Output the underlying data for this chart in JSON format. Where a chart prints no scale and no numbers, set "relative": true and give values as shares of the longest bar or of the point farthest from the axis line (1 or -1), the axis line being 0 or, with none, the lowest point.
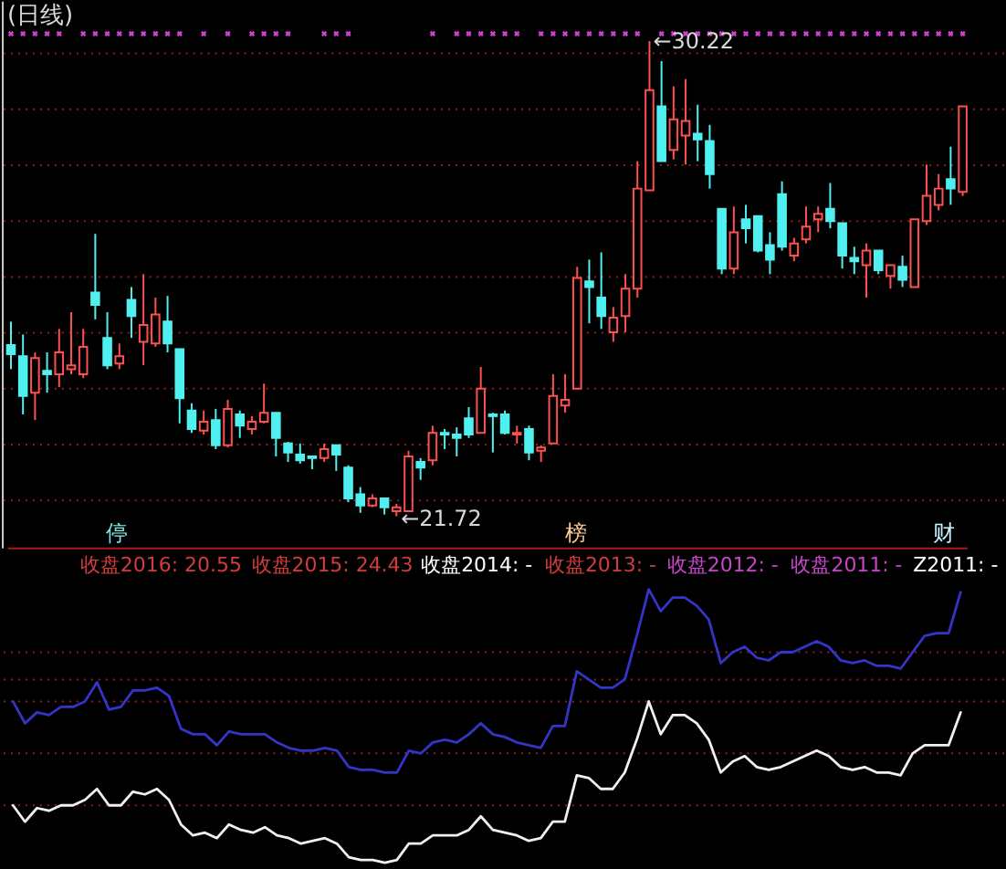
{
  "chart_data": [
    {
      "type": "candlestick",
      "title": "(日线)",
      "tick_labels": false,
      "grid": "y",
      "marker": "cross",
      "categories": [
        null,
        null,
        null,
        null,
        null,
        null,
        null,
        null,
        null,
        null,
        null,
        null,
        null,
        null,
        null,
        null,
        null,
        null,
        null,
        null,
        null,
        null,
        null,
        null,
        null,
        null,
        null,
        null,
        null,
        null,
        null,
        null,
        null,
        null,
        null,
        null,
        null,
        null,
        null,
        null,
        null,
        null,
        null,
        null,
        null,
        null,
        null,
        null,
        null,
        null,
        null,
        null,
        null,
        null,
        null,
        null,
        null,
        null,
        null,
        null,
        null,
        null,
        null,
        null,
        null,
        null,
        null,
        null,
        null,
        null,
        null,
        null,
        null,
        null,
        null,
        null,
        null,
        null,
        null,
        null
      ],
      "ylim": [
        21.16,
        30.94
      ],
      "yticks": [
        {
          "value": 22,
          "label": null
        },
        {
          "value": 23,
          "label": null
        },
        {
          "value": 24,
          "label": null
        },
        {
          "value": 25,
          "label": null
        },
        {
          "value": 26,
          "label": null
        },
        {
          "value": 27,
          "label": null
        },
        {
          "value": 28,
          "label": null
        },
        {
          "value": 29,
          "label": null
        },
        {
          "value": 30,
          "label": null
        }
      ],
      "ohlc": [
        [
          24.78,
          25.2,
          24.35,
          24.62
        ],
        [
          24.58,
          24.97,
          23.54,
          23.87
        ],
        [
          23.93,
          24.65,
          23.44,
          24.55
        ],
        [
          24.32,
          24.65,
          23.93,
          24.26
        ],
        [
          24.26,
          25.07,
          24.03,
          24.65
        ],
        [
          24.35,
          25.37,
          24.26,
          24.42
        ],
        [
          24.26,
          25.07,
          24.19,
          24.75
        ],
        [
          25.72,
          26.77,
          25.24,
          25.5
        ],
        [
          24.91,
          25.37,
          24.35,
          24.42
        ],
        [
          24.45,
          24.81,
          24.35,
          24.58
        ],
        [
          25.59,
          25.82,
          24.91,
          25.3
        ],
        [
          24.84,
          26.05,
          24.42,
          25.14
        ],
        [
          24.81,
          25.63,
          24.75,
          25.33
        ],
        [
          25.2,
          25.66,
          24.65,
          24.81
        ],
        [
          24.71,
          24.71,
          23.38,
          23.83
        ],
        [
          23.61,
          23.74,
          23.21,
          23.28
        ],
        [
          23.25,
          23.61,
          23.18,
          23.41
        ],
        [
          23.44,
          23.64,
          22.92,
          22.99
        ],
        [
          22.99,
          23.8,
          22.95,
          23.64
        ],
        [
          23.54,
          23.61,
          23.12,
          23.34
        ],
        [
          23.28,
          23.51,
          23.18,
          23.41
        ],
        [
          23.41,
          24.09,
          23.38,
          23.57
        ],
        [
          23.57,
          23.57,
          22.79,
          23.12
        ],
        [
          23.02,
          23.05,
          22.69,
          22.86
        ],
        [
          22.82,
          23.02,
          22.66,
          22.72
        ],
        [
          22.79,
          22.79,
          22.56,
          22.76
        ],
        [
          22.76,
          23.02,
          22.69,
          22.92
        ],
        [
          22.99,
          22.99,
          22.53,
          22.82
        ],
        [
          22.59,
          22.63,
          21.97,
          22.04
        ],
        [
          22.11,
          22.24,
          21.78,
          21.91
        ],
        [
          21.91,
          22.11,
          21.88,
          22.04
        ],
        [
          22.04,
          22.04,
          21.75,
          21.88
        ],
        [
          21.81,
          21.94,
          21.72,
          21.88
        ],
        [
          21.81,
          22.89,
          21.81,
          22.79
        ],
        [
          22.69,
          22.76,
          22.37,
          22.59
        ],
        [
          22.72,
          23.34,
          22.63,
          23.21
        ],
        [
          23.21,
          23.28,
          22.92,
          23.18
        ],
        [
          23.18,
          23.31,
          22.79,
          23.12
        ],
        [
          23.47,
          23.67,
          23.12,
          23.18
        ],
        [
          23.21,
          24.39,
          23.21,
          24.0
        ],
        [
          23.54,
          23.57,
          22.86,
          23.51
        ],
        [
          23.54,
          23.61,
          23.18,
          23.21
        ],
        [
          23.18,
          23.34,
          23.02,
          23.21
        ],
        [
          23.28,
          23.34,
          22.72,
          22.86
        ],
        [
          22.89,
          22.99,
          22.69,
          22.95
        ],
        [
          23.02,
          24.26,
          23.02,
          23.87
        ],
        [
          23.7,
          24.26,
          23.57,
          23.8
        ],
        [
          24.0,
          26.18,
          24.0,
          25.98
        ],
        [
          25.92,
          26.31,
          25.17,
          25.82
        ],
        [
          25.63,
          26.44,
          25.07,
          25.3
        ],
        [
          25.01,
          25.46,
          24.84,
          25.27
        ],
        [
          25.3,
          26.05,
          25.01,
          25.79
        ],
        [
          25.79,
          28.07,
          25.63,
          27.58
        ],
        [
          27.55,
          30.22,
          27.55,
          29.34
        ],
        [
          29.05,
          29.86,
          28.07,
          28.07
        ],
        [
          28.27,
          29.41,
          28.1,
          28.82
        ],
        [
          28.53,
          29.54,
          28.01,
          28.79
        ],
        [
          28.56,
          29.08,
          28.07,
          28.46
        ],
        [
          28.43,
          28.72,
          27.58,
          27.84
        ],
        [
          27.22,
          27.22,
          26.05,
          26.15
        ],
        [
          26.15,
          27.26,
          26.05,
          26.8
        ],
        [
          27.03,
          27.29,
          26.6,
          26.87
        ],
        [
          27.09,
          27.09,
          26.44,
          26.47
        ],
        [
          26.57,
          26.8,
          26.05,
          26.31
        ],
        [
          27.48,
          27.71,
          26.47,
          26.54
        ],
        [
          26.38,
          26.7,
          26.28,
          26.6
        ],
        [
          26.67,
          27.26,
          26.6,
          26.9
        ],
        [
          27.03,
          27.26,
          26.8,
          27.13
        ],
        [
          27.22,
          27.68,
          26.87,
          27.0
        ],
        [
          26.96,
          26.96,
          26.15,
          26.38
        ],
        [
          26.34,
          26.54,
          26.05,
          26.28
        ],
        [
          26.21,
          26.6,
          25.63,
          26.47
        ],
        [
          26.47,
          26.47,
          26.05,
          26.12
        ],
        [
          26.02,
          26.21,
          25.79,
          26.21
        ],
        [
          26.18,
          26.38,
          25.82,
          25.95
        ],
        [
          25.82,
          27.03,
          25.82,
          27.03
        ],
        [
          27.0,
          28.01,
          26.93,
          27.45
        ],
        [
          27.29,
          27.84,
          27.19,
          27.58
        ],
        [
          27.75,
          28.33,
          27.29,
          27.58
        ],
        [
          27.52,
          29.05,
          27.45,
          29.05
        ]
      ],
      "colors": [
        "#50f0f0",
        "#50f0f0",
        "#ff5050",
        "#50f0f0",
        "#ff5050",
        "#ff5050",
        "#ff5050",
        "#50f0f0",
        "#50f0f0",
        "#ff5050",
        "#50f0f0",
        "#ff5050",
        "#ff5050",
        "#50f0f0",
        "#50f0f0",
        "#50f0f0",
        "#ff5050",
        "#50f0f0",
        "#ff5050",
        "#50f0f0",
        "#ff5050",
        "#ff5050",
        "#50f0f0",
        "#50f0f0",
        "#50f0f0",
        "#50f0f0",
        "#ff5050",
        "#50f0f0",
        "#50f0f0",
        "#50f0f0",
        "#ff5050",
        "#50f0f0",
        "#ff5050",
        "#ff5050",
        "#50f0f0",
        "#ff5050",
        "#50f0f0",
        "#50f0f0",
        "#50f0f0",
        "#ff5050",
        "#50f0f0",
        "#50f0f0",
        "#ff5050",
        "#50f0f0",
        "#ff5050",
        "#ff5050",
        "#ff5050",
        "#ff5050",
        "#50f0f0",
        "#50f0f0",
        "#ff5050",
        "#ff5050",
        "#ff5050",
        "#ff5050",
        "#50f0f0",
        "#ff5050",
        "#ff5050",
        "#50f0f0",
        "#50f0f0",
        "#50f0f0",
        "#ff5050",
        "#50f0f0",
        "#50f0f0",
        "#50f0f0",
        "#50f0f0",
        "#ff5050",
        "#ff5050",
        "#ff5050",
        "#50f0f0",
        "#50f0f0",
        "#50f0f0",
        "#ff5050",
        "#50f0f0",
        "#ff5050",
        "#50f0f0",
        "#ff5050",
        "#ff5050",
        "#ff5050",
        "#50f0f0",
        "#ff5050"
      ],
      "series": [
        {
          "type": "scatter",
          "color": "#d040d0",
          "values": [
            30.35,
            30.35,
            30.35,
            30.35,
            30.35,
            null,
            30.35,
            30.35,
            30.35,
            30.35,
            30.35,
            30.35,
            30.35,
            30.35,
            30.35,
            null,
            30.35,
            null,
            30.35,
            null,
            30.35,
            30.35,
            30.35,
            30.35,
            null,
            null,
            30.35,
            30.35,
            30.35,
            null,
            null,
            null,
            null,
            null,
            null,
            30.35,
            null,
            30.35,
            30.35,
            30.35,
            30.35,
            30.35,
            30.35,
            null,
            30.35,
            30.35,
            30.35,
            30.35,
            30.35,
            30.35,
            30.35,
            30.35,
            30.35,
            null,
            30.35,
            30.35,
            30.35,
            30.35,
            30.35,
            30.35,
            30.35,
            30.35,
            30.35,
            30.35,
            30.35,
            30.35,
            30.35,
            30.35,
            30.35,
            30.35,
            30.35,
            30.35,
            30.35,
            30.35,
            30.35,
            30.35,
            30.35,
            30.35,
            30.35,
            30.35
          ]
        }
      ],
      "annotations": [
        {
          "text": "←30.22",
          "y": 30.22
        },
        "←21.72",
        "停",
        "榜",
        "财"
      ]
    },
    {
      "type": "line",
      "relative": true,
      "tick_labels": false,
      "categories": [
        null,
        null,
        null,
        null,
        null,
        null,
        null,
        null,
        null,
        null,
        null,
        null,
        null,
        null,
        null,
        null,
        null,
        null,
        null,
        null,
        null,
        null,
        null,
        null,
        null,
        null,
        null,
        null,
        null,
        null,
        null,
        null,
        null,
        null,
        null,
        null,
        null,
        null,
        null,
        null,
        null,
        null,
        null,
        null,
        null,
        null,
        null,
        null,
        null,
        null,
        null,
        null,
        null,
        null,
        null,
        null,
        null,
        null,
        null,
        null,
        null,
        null,
        null,
        null,
        null,
        null,
        null,
        null,
        null,
        null,
        null,
        null,
        null,
        null,
        null,
        null,
        null,
        null,
        null,
        null
      ],
      "series": [
        {
          "color": "#3434c8",
          "values": [
            0.59,
            0.51,
            0.55,
            0.54,
            0.57,
            0.57,
            0.59,
            0.66,
            0.56,
            0.57,
            0.63,
            0.63,
            0.64,
            0.61,
            0.49,
            0.47,
            0.47,
            0.43,
            0.48,
            0.47,
            0.47,
            0.47,
            0.44,
            0.42,
            0.41,
            0.41,
            0.42,
            0.41,
            0.35,
            0.34,
            0.34,
            0.33,
            0.33,
            0.41,
            0.4,
            0.44,
            0.45,
            0.44,
            0.47,
            0.51,
            0.47,
            0.46,
            0.44,
            0.43,
            0.42,
            0.5,
            0.5,
            0.7,
            0.67,
            0.64,
            0.64,
            0.67,
            0.83,
            1,
            0.92,
            0.97,
            0.97,
            0.94,
            0.89,
            0.73,
            0.77,
            0.79,
            0.75,
            0.74,
            0.77,
            0.77,
            0.79,
            0.81,
            0.79,
            0.74,
            0.73,
            0.74,
            0.72,
            0.72,
            0.71,
            0.77,
            0.83,
            0.84,
            0.84,
            0.99
          ]
        },
        {
          "color": "#f0f0f0",
          "values": [
            0.21,
            0.15,
            0.2,
            0.19,
            0.21,
            0.21,
            0.23,
            0.27,
            0.21,
            0.21,
            0.26,
            0.25,
            0.27,
            0.23,
            0.14,
            0.1,
            0.11,
            0.09,
            0.14,
            0.12,
            0.11,
            0.13,
            0.1,
            0.09,
            0.07,
            0.08,
            0.09,
            0.07,
            0.02,
            0.01,
            0.01,
            0,
            0.01,
            0.07,
            0.07,
            0.1,
            0.1,
            0.1,
            0.12,
            0.17,
            0.12,
            0.11,
            0.1,
            0.08,
            0.09,
            0.15,
            0.15,
            0.32,
            0.31,
            0.27,
            0.27,
            0.33,
            0.45,
            0.59,
            0.47,
            0.54,
            0.54,
            0.51,
            0.45,
            0.33,
            0.37,
            0.39,
            0.35,
            0.34,
            0.35,
            0.37,
            0.39,
            0.41,
            0.39,
            0.35,
            0.34,
            0.35,
            0.33,
            0.33,
            0.32,
            0.4,
            0.43,
            0.43,
            0.43,
            0.55
          ]
        }
      ],
      "ref_lines": [
        {
          "axis": "y",
          "value": 0.77,
          "color": "#9a1c1c",
          "line_style": "dotted"
        },
        {
          "axis": "y",
          "value": 0.67,
          "color": "#9a1c1c",
          "line_style": "dotted"
        },
        {
          "axis": "y",
          "value": 0.59,
          "color": "#9a1c1c",
          "line_style": "dotted"
        },
        {
          "axis": "y",
          "value": 0.4,
          "color": "#9a1c1c",
          "line_style": "dotted"
        },
        {
          "axis": "y",
          "value": 0.21,
          "color": "#9a1c1c",
          "line_style": "dotted"
        }
      ],
      "annotations": [
        "收盘2016: 20.55",
        "收盘2015: 24.43",
        "收盘2014: -",
        "收盘2013: -",
        "收盘2012: -",
        "收盘2011: -",
        "Z2011: -"
      ]
    }
  ]
}
